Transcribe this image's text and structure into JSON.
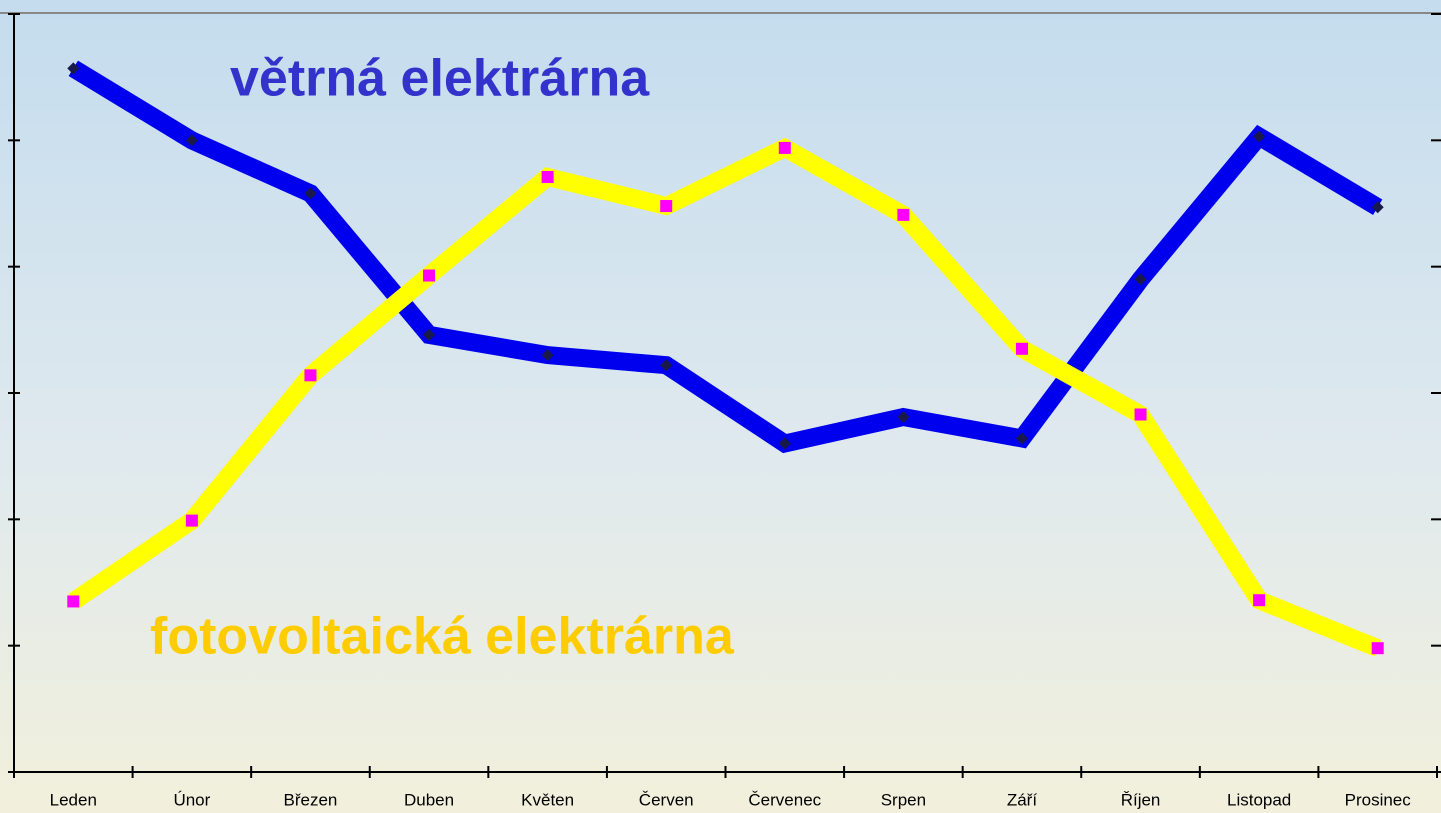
{
  "chart_data": {
    "type": "line",
    "categories": [
      "Leden",
      "Únor",
      "Březen",
      "Duben",
      "Květen",
      "Červen",
      "Červenec",
      "Srpen",
      "Září",
      "Říjen",
      "Listopad",
      "Prosinec"
    ],
    "series": [
      {
        "name": "větrná elektrárna",
        "color": "#0000ee",
        "marker_color": "#1a1a4a",
        "values": [
          5.57,
          5.0,
          4.58,
          3.46,
          3.3,
          3.22,
          2.6,
          2.81,
          2.64,
          3.9,
          5.03,
          4.47
        ]
      },
      {
        "name": "fotovoltaická elektrárna",
        "color": "#ffff00",
        "marker_color": "#ff00ff",
        "values": [
          1.35,
          1.99,
          3.14,
          3.93,
          4.71,
          4.48,
          4.94,
          4.41,
          3.35,
          2.83,
          1.36,
          0.98
        ]
      }
    ],
    "ylim": [
      0,
      6
    ],
    "yticks": [
      0,
      1,
      2,
      3,
      4,
      5,
      6
    ]
  }
}
